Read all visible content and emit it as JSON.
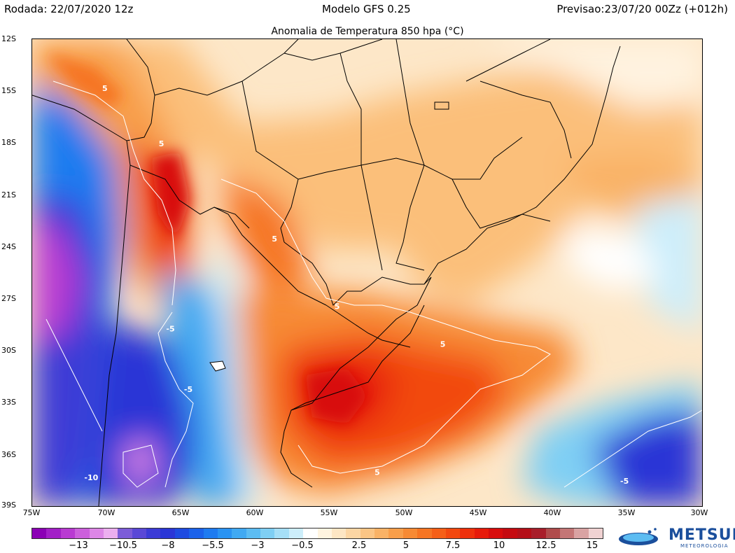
{
  "header": {
    "run": "Rodada: 22/07/2020 12z",
    "model": "Modelo GFS 0.25",
    "valid": "Previsao:23/07/20 00Zz (+012h)"
  },
  "plot_title": "Anomalia de Temperatura 850 hpa (°C)",
  "lat_labels": [
    "12S",
    "15S",
    "18S",
    "21S",
    "24S",
    "27S",
    "30S",
    "33S",
    "36S",
    "39S"
  ],
  "lon_labels": [
    "75W",
    "70W",
    "65W",
    "60W",
    "55W",
    "50W",
    "45W",
    "40W",
    "35W",
    "30W"
  ],
  "contour_labels": [
    {
      "text": "5",
      "lon": -70.3,
      "lat": -15.0
    },
    {
      "text": "5",
      "lon": -66.5,
      "lat": -18.2
    },
    {
      "text": "5",
      "lon": -58.9,
      "lat": -23.7
    },
    {
      "text": "5",
      "lon": -54.7,
      "lat": -27.6
    },
    {
      "text": "5",
      "lon": -47.6,
      "lat": -29.8
    },
    {
      "text": "5",
      "lon": -52.0,
      "lat": -37.2
    },
    {
      "text": "-5",
      "lon": -66.0,
      "lat": -28.9
    },
    {
      "text": "-5",
      "lon": -64.8,
      "lat": -32.4
    },
    {
      "text": "-10",
      "lon": -71.5,
      "lat": -37.5
    },
    {
      "text": "-5",
      "lon": -35.5,
      "lat": -37.7
    }
  ],
  "colorbar": {
    "labels": [
      "−13",
      "−10.5",
      "−8",
      "−5.5",
      "−3",
      "−0.5",
      "2.5",
      "5",
      "7.5",
      "10",
      "12.5",
      "15"
    ],
    "colors": [
      "#8b00b5",
      "#a21fc7",
      "#b93ad2",
      "#cc60dc",
      "#dd86e6",
      "#ecafef",
      "#7c5cd8",
      "#5a48d6",
      "#3c3bd6",
      "#2a36d6",
      "#1e4be0",
      "#1b62ea",
      "#1e7bf0",
      "#2a93f2",
      "#40a9f2",
      "#5cbcf2",
      "#7fcff4",
      "#a6dff7",
      "#cdeefb",
      "#ffffff",
      "#fff4e0",
      "#fde6c4",
      "#fcd6a4",
      "#fbc585",
      "#f9b266",
      "#f89e4a",
      "#f78a34",
      "#f67523",
      "#f55f17",
      "#f2480f",
      "#ee300b",
      "#e61a0a",
      "#d80c0c",
      "#c50a10",
      "#b40f18",
      "#a81e2a",
      "#b04c4c",
      "#c47676",
      "#d9a3a3",
      "#f0d2d2"
    ]
  },
  "logo": {
    "name": "METSUL",
    "sub": "METEOROLOGIA"
  }
}
